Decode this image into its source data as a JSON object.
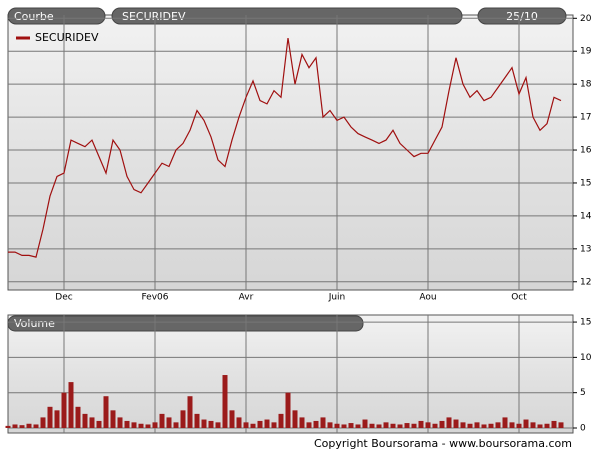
{
  "chart_data": [
    {
      "type": "line",
      "panel_label": "Courbe",
      "title": "SECURIDEV",
      "date_label": "25/10",
      "categories": [
        null,
        null,
        null,
        null,
        null,
        null,
        null,
        null,
        "Dec",
        null,
        null,
        null,
        null,
        null,
        null,
        null,
        null,
        null,
        null,
        null,
        null,
        "Fev06",
        null,
        null,
        null,
        null,
        null,
        null,
        null,
        null,
        null,
        null,
        null,
        null,
        "Avr",
        null,
        null,
        null,
        null,
        null,
        null,
        null,
        null,
        null,
        null,
        null,
        null,
        "Juin",
        null,
        null,
        null,
        null,
        null,
        null,
        null,
        null,
        null,
        null,
        null,
        null,
        "Aou",
        null,
        null,
        null,
        null,
        null,
        null,
        null,
        null,
        null,
        null,
        null,
        null,
        "Oct",
        null,
        null,
        null,
        null,
        null,
        null
      ],
      "series": [
        {
          "name": "SECURIDEV",
          "color": "#a01010",
          "values": [
            12.9,
            12.9,
            12.8,
            12.8,
            12.75,
            13.6,
            14.6,
            15.2,
            15.3,
            16.3,
            16.2,
            16.1,
            16.3,
            15.8,
            15.3,
            16.3,
            16.0,
            15.2,
            14.8,
            14.7,
            15.0,
            15.3,
            15.6,
            15.5,
            16.0,
            16.2,
            16.6,
            17.2,
            16.9,
            16.4,
            15.7,
            15.5,
            16.3,
            17.0,
            17.6,
            18.1,
            17.5,
            17.4,
            17.8,
            17.6,
            19.4,
            18.0,
            18.9,
            18.5,
            18.8,
            17.0,
            17.2,
            16.9,
            17.0,
            16.7,
            16.5,
            16.4,
            16.3,
            16.2,
            16.3,
            16.6,
            16.2,
            16.0,
            15.8,
            15.9,
            15.9,
            16.3,
            16.7,
            17.8,
            18.8,
            18.0,
            17.6,
            17.8,
            17.5,
            17.6,
            17.9,
            18.2,
            18.5,
            17.7,
            18.2,
            17.0,
            16.6,
            16.8,
            17.6,
            17.5
          ]
        }
      ],
      "ylim": [
        11.75,
        20.1
      ],
      "yticks": [
        12,
        13,
        14,
        15,
        16,
        17,
        18,
        19,
        20
      ],
      "grid": true
    },
    {
      "type": "bar",
      "title": "Volume",
      "color": "#9b1b1b",
      "values": [
        0.3,
        0.5,
        0.4,
        0.6,
        0.5,
        1.5,
        3.0,
        2.5,
        5.0,
        6.5,
        3.0,
        2.0,
        1.5,
        1.0,
        4.5,
        2.5,
        1.5,
        1.0,
        0.8,
        0.6,
        0.5,
        0.8,
        2.0,
        1.5,
        0.8,
        2.5,
        4.5,
        2.0,
        1.2,
        1.0,
        0.8,
        7.5,
        2.5,
        1.5,
        0.8,
        0.6,
        1.0,
        1.2,
        0.8,
        2.0,
        5.0,
        2.5,
        1.5,
        0.8,
        1.0,
        1.5,
        0.8,
        0.6,
        0.5,
        0.7,
        0.5,
        1.2,
        0.6,
        0.5,
        0.8,
        0.6,
        0.5,
        0.7,
        0.6,
        1.0,
        0.8,
        0.6,
        1.0,
        1.5,
        1.2,
        0.8,
        0.6,
        0.8,
        0.5,
        0.6,
        0.8,
        1.5,
        0.8,
        0.6,
        1.2,
        0.8,
        0.5,
        0.6,
        1.0,
        0.8
      ],
      "ylim": [
        0,
        16
      ],
      "yticks": [
        0,
        5,
        10,
        15
      ],
      "grid": true
    }
  ],
  "footer": "Copyright Boursorama - www.boursorama.com"
}
